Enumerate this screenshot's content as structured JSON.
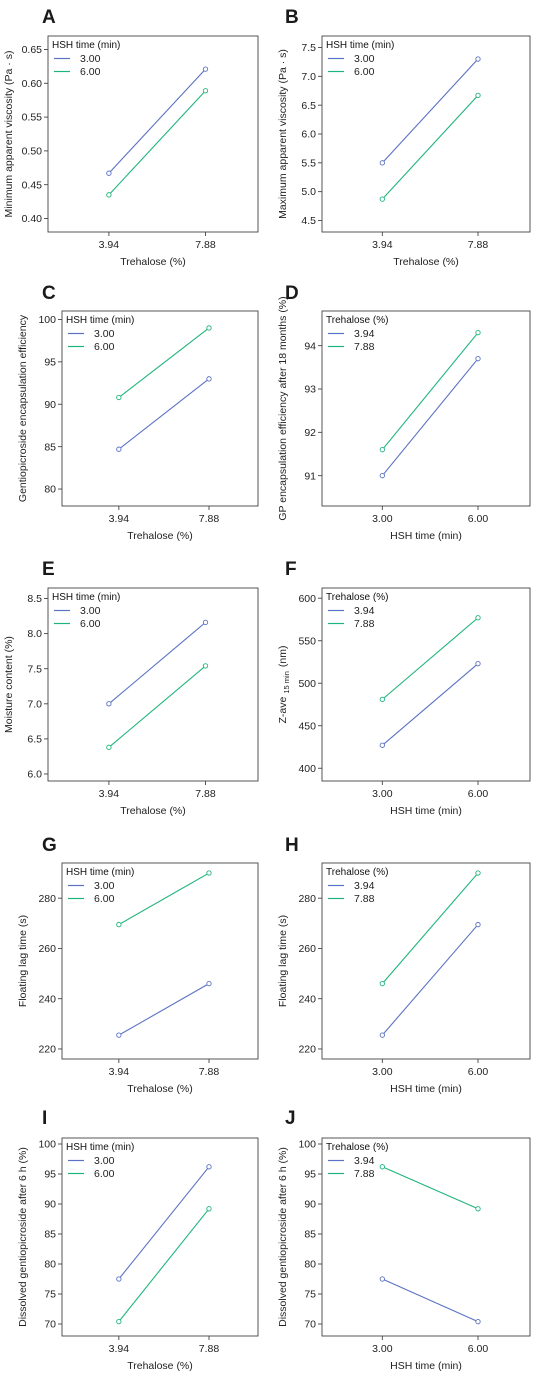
{
  "colors": {
    "series1": "#5b72c4",
    "series2": "#1fb57a",
    "frame": "#444444",
    "background": "#ffffff"
  },
  "chart_data": [
    {
      "panel": "A",
      "type": "line",
      "xlabel": "Trehalose  (%)",
      "ylabel": "Minimum apparent viscosity (Pa · s)",
      "x": [
        "3.94",
        "7.88"
      ],
      "ylim": [
        0.38,
        0.67
      ],
      "yticks": [
        "0.40",
        "0.45",
        "0.50",
        "0.55",
        "0.60",
        "0.65"
      ],
      "legend_title": "HSH time (min)",
      "legend_position": "top-left",
      "series": [
        {
          "name": "3.00",
          "values": [
            0.467,
            0.621
          ]
        },
        {
          "name": "6.00",
          "values": [
            0.435,
            0.589
          ]
        }
      ]
    },
    {
      "panel": "B",
      "type": "line",
      "xlabel": "Trehalose  (%)",
      "ylabel": "Maximum apparent viscosity (Pa · s)",
      "x": [
        "3.94",
        "7.88"
      ],
      "ylim": [
        4.3,
        7.7
      ],
      "yticks": [
        "4.5",
        "5.0",
        "5.5",
        "6.0",
        "6.5",
        "7.0",
        "7.5"
      ],
      "legend_title": "HSH time (min)",
      "legend_position": "top-left",
      "series": [
        {
          "name": "3.00",
          "values": [
            5.5,
            7.3
          ]
        },
        {
          "name": "6.00",
          "values": [
            4.87,
            6.67
          ]
        }
      ]
    },
    {
      "panel": "C",
      "type": "line",
      "xlabel": "Trehalose  (%)",
      "ylabel": "Gentiopicroside encapsulation efficiency",
      "x": [
        "3.94",
        "7.88"
      ],
      "ylim": [
        78,
        101
      ],
      "yticks": [
        "80",
        "85",
        "90",
        "95",
        "100"
      ],
      "legend_title": "HSH time (min)",
      "legend_position": "top-left",
      "series": [
        {
          "name": "3.00",
          "values": [
            84.7,
            93.0
          ]
        },
        {
          "name": "6.00",
          "values": [
            90.8,
            99.0
          ]
        }
      ]
    },
    {
      "panel": "D",
      "type": "line",
      "xlabel": "HSH time (min)",
      "ylabel": "GP encapsulation efficiency  after 18 months (%)",
      "x": [
        "3.00",
        "6.00"
      ],
      "ylim": [
        90.3,
        94.8
      ],
      "yticks": [
        "91",
        "92",
        "93",
        "94"
      ],
      "legend_title": "Trehalose  (%)",
      "legend_position": "top-left",
      "series": [
        {
          "name": "3.94",
          "values": [
            91.0,
            93.7
          ]
        },
        {
          "name": "7.88",
          "values": [
            91.6,
            94.3
          ]
        }
      ]
    },
    {
      "panel": "E",
      "type": "line",
      "xlabel": "Trehalose  (%)",
      "ylabel": "Moisture content (%)",
      "x": [
        "3.94",
        "7.88"
      ],
      "ylim": [
        5.9,
        8.65
      ],
      "yticks": [
        "6.0",
        "6.5",
        "7.0",
        "7.5",
        "8.0",
        "8.5"
      ],
      "legend_title": "HSH time (min)",
      "legend_position": "top-left",
      "series": [
        {
          "name": "3.00",
          "values": [
            7.0,
            8.16
          ]
        },
        {
          "name": "6.00",
          "values": [
            6.38,
            7.54
          ]
        }
      ]
    },
    {
      "panel": "F",
      "type": "line",
      "xlabel": "HSH time (min)",
      "ylabel": "Z-ave",
      "ylabel_sub": "15 min",
      "ylabel_unit": "(nm)",
      "x": [
        "3.00",
        "6.00"
      ],
      "ylim": [
        385,
        612
      ],
      "yticks": [
        "400",
        "450",
        "500",
        "550",
        "600"
      ],
      "legend_title": "Trehalose  (%)",
      "legend_position": "top-left",
      "series": [
        {
          "name": "3.94",
          "values": [
            427,
            523
          ]
        },
        {
          "name": "7.88",
          "values": [
            481,
            577
          ]
        }
      ]
    },
    {
      "panel": "G",
      "type": "line",
      "xlabel": "Trehalose  (%)",
      "ylabel": "Floating lag time (s)",
      "x": [
        "3.94",
        "7.88"
      ],
      "ylim": [
        216,
        294
      ],
      "yticks": [
        "220",
        "240",
        "260",
        "280"
      ],
      "legend_title": "HSH time (min)",
      "legend_position": "top-left",
      "series": [
        {
          "name": "3.00",
          "values": [
            225.5,
            246
          ]
        },
        {
          "name": "6.00",
          "values": [
            269.5,
            290
          ]
        }
      ]
    },
    {
      "panel": "H",
      "type": "line",
      "xlabel": "HSH time (min)",
      "ylabel": "Floating lag time  (s)",
      "x": [
        "3.00",
        "6.00"
      ],
      "ylim": [
        216,
        294
      ],
      "yticks": [
        "220",
        "240",
        "260",
        "280"
      ],
      "legend_title": "Trehalose (%)",
      "legend_position": "top-left",
      "series": [
        {
          "name": "3.94",
          "values": [
            225.5,
            269.5
          ]
        },
        {
          "name": "7.88",
          "values": [
            246,
            290
          ]
        }
      ]
    },
    {
      "panel": "I",
      "type": "line",
      "xlabel": "Trehalose  (%)",
      "ylabel": "Dissolved gentiopicroside after 6 h (%)",
      "x": [
        "3.94",
        "7.88"
      ],
      "ylim": [
        68,
        101
      ],
      "yticks": [
        "70",
        "75",
        "80",
        "85",
        "90",
        "95",
        "100"
      ],
      "legend_title": "HSH time (min)",
      "legend_position": "top-left",
      "series": [
        {
          "name": "3.00",
          "values": [
            77.5,
            96.2
          ]
        },
        {
          "name": "6.00",
          "values": [
            70.4,
            89.2
          ]
        }
      ]
    },
    {
      "panel": "J",
      "type": "line",
      "xlabel": "HSH time (min)",
      "ylabel": "Dissolved gentiopicroside after 6 h (%)",
      "x": [
        "3.00",
        "6.00"
      ],
      "ylim": [
        68,
        101
      ],
      "yticks": [
        "70",
        "75",
        "80",
        "85",
        "90",
        "95",
        "100"
      ],
      "legend_title": "Trehalose (%)",
      "legend_position": "top-left",
      "series": [
        {
          "name": "3.94",
          "values": [
            77.5,
            70.4
          ]
        },
        {
          "name": "7.88",
          "values": [
            96.2,
            89.2
          ]
        }
      ]
    }
  ]
}
